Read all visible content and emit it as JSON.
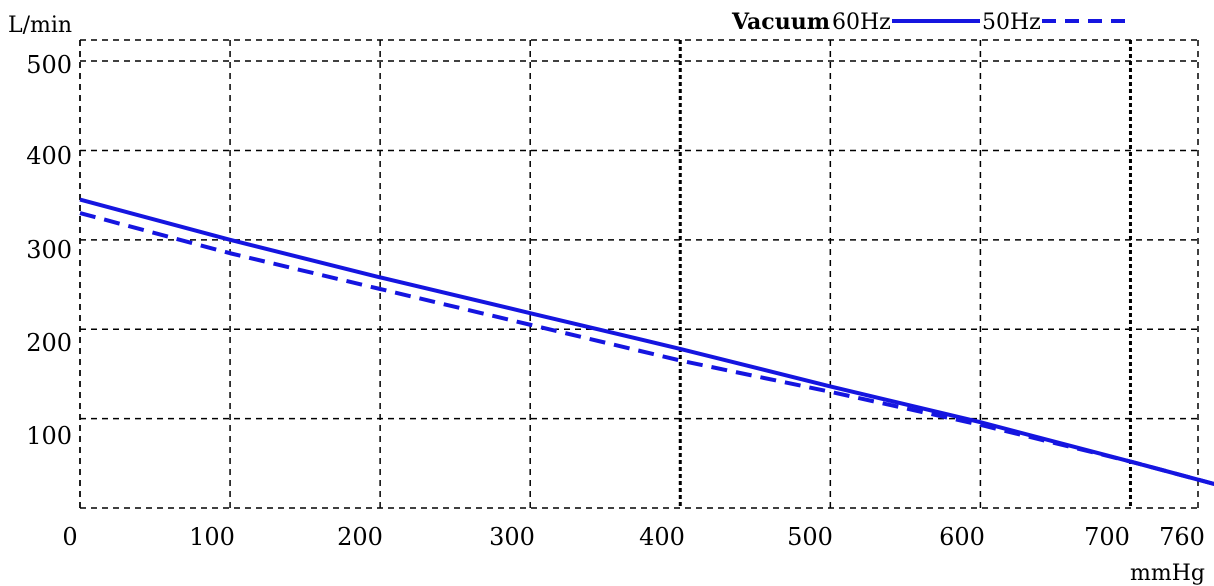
{
  "chart_data": {
    "type": "line",
    "ylabel": "L/min",
    "xlabel": "mmHg",
    "xlim": [
      0,
      760
    ],
    "ylim": [
      0,
      500
    ],
    "x_ticks": [
      "0",
      "100",
      "200",
      "300",
      "400",
      "500",
      "600",
      "700",
      "760"
    ],
    "y_ticks": [
      "100",
      "200",
      "300",
      "400",
      "500"
    ],
    "legend": {
      "title": "Vacuum",
      "placement": "top-right"
    },
    "series": [
      {
        "name": "60Hz",
        "style": "solid",
        "color": "#1515e0",
        "x": [
          0,
          100,
          200,
          300,
          400,
          500,
          600,
          700,
          760
        ],
        "y": [
          345,
          300,
          258,
          218,
          178,
          136,
          96,
          52,
          25
        ]
      },
      {
        "name": "50Hz",
        "style": "dashed",
        "color": "#1515e0",
        "x": [
          0,
          100,
          200,
          300,
          400,
          500,
          600,
          700,
          760
        ],
        "y": [
          330,
          285,
          245,
          205,
          165,
          130,
          93,
          52,
          25
        ]
      }
    ],
    "grid": true,
    "gridline_x": [
      0,
      100,
      200,
      300,
      400,
      500,
      600,
      700
    ],
    "gridline_y": [
      100,
      200,
      300,
      400,
      500
    ]
  }
}
